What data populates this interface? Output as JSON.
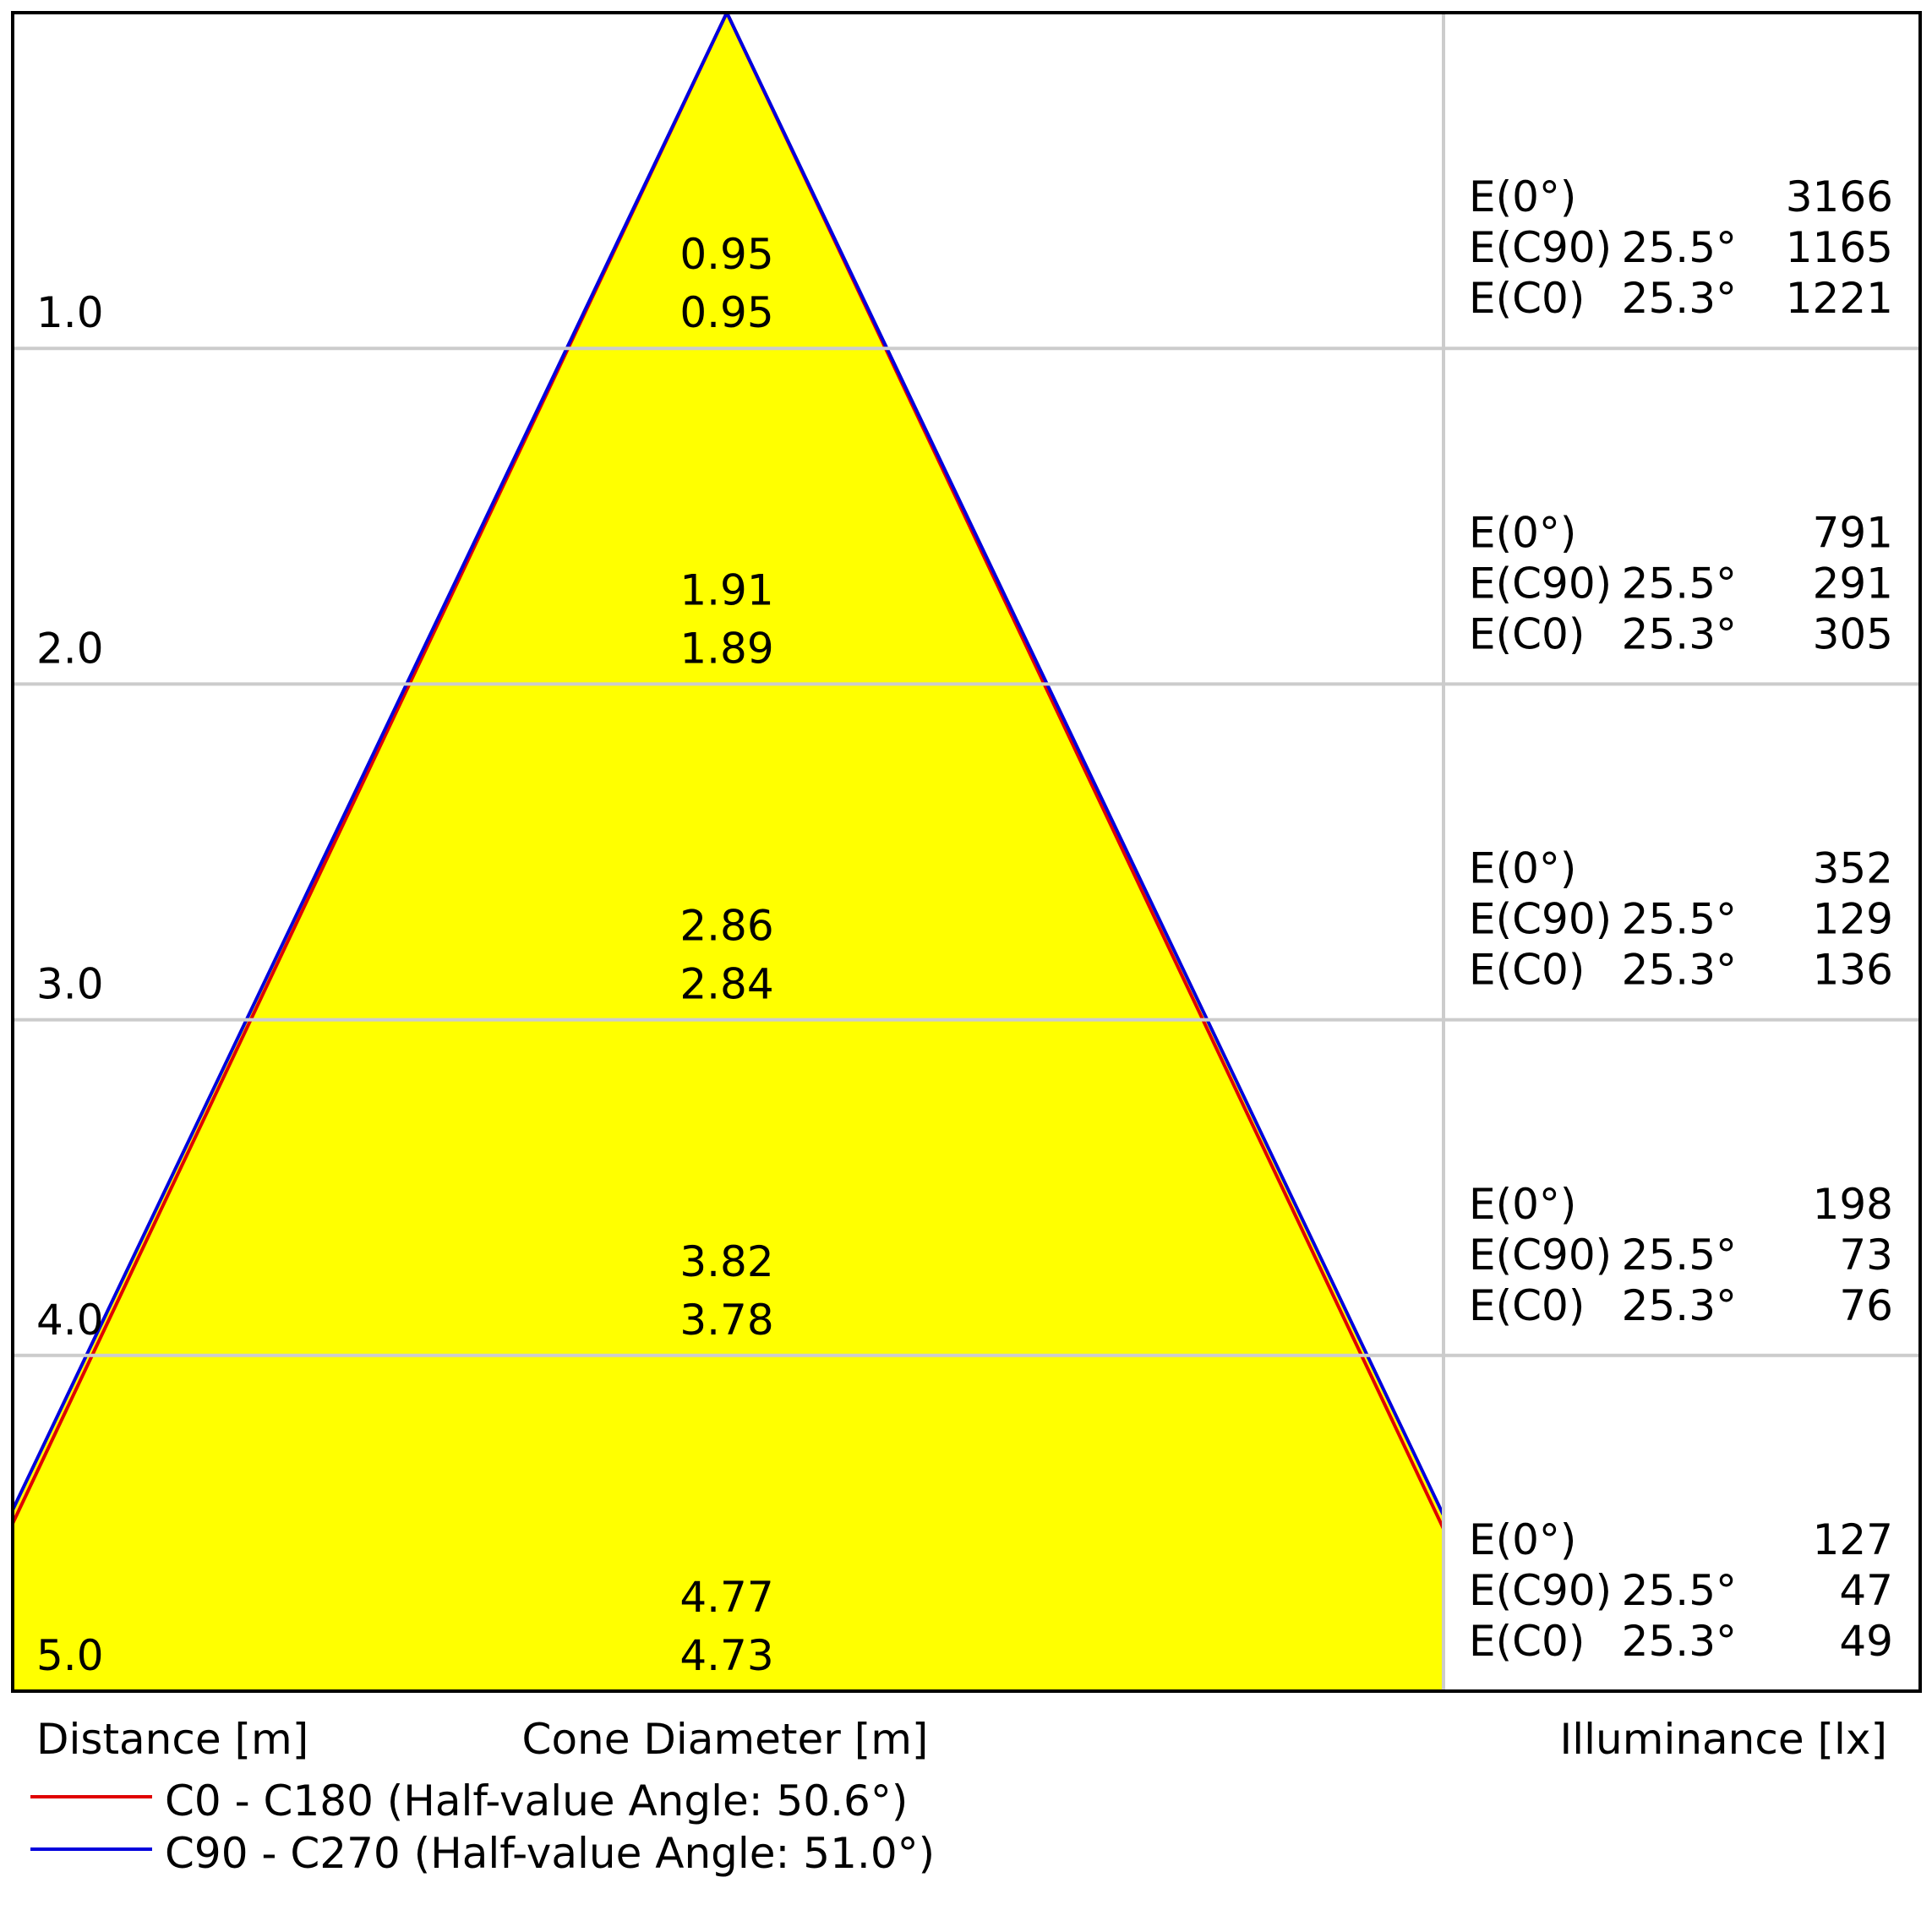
{
  "chart_data": {
    "type": "cone-diagram",
    "xlabel_left": "Distance [m]",
    "xlabel_center": "Cone Diameter [m]",
    "xlabel_right": "Illuminance [lx]",
    "colors": {
      "cone_fill": "#ffff00",
      "c0": "#e00000",
      "c90": "#0000dd",
      "grid": "#cccccc",
      "frame": "#000000"
    },
    "series": [
      {
        "name": "C0 - C180 (Half-value Angle: 50.6°)",
        "color": "#e00000",
        "half_angle_deg": 50.6
      },
      {
        "name": "C90 - C270 (Half-value Angle: 51.0°)",
        "color": "#0000dd",
        "half_angle_deg": 51.0
      }
    ],
    "max_distance": 5.0,
    "rows": [
      {
        "distance": "1.0",
        "d_c90": "0.95",
        "d_c0": "0.95",
        "e0_label": "E(0°)",
        "e0": "3166",
        "ec90_label": "E(C90)",
        "ec90_angle": "25.5°",
        "ec90": "1165",
        "ec0_label": "E(C0)",
        "ec0_angle": "25.3°",
        "ec0": "1221"
      },
      {
        "distance": "2.0",
        "d_c90": "1.91",
        "d_c0": "1.89",
        "e0_label": "E(0°)",
        "e0": "791",
        "ec90_label": "E(C90)",
        "ec90_angle": "25.5°",
        "ec90": "291",
        "ec0_label": "E(C0)",
        "ec0_angle": "25.3°",
        "ec0": "305"
      },
      {
        "distance": "3.0",
        "d_c90": "2.86",
        "d_c0": "2.84",
        "e0_label": "E(0°)",
        "e0": "352",
        "ec90_label": "E(C90)",
        "ec90_angle": "25.5°",
        "ec90": "129",
        "ec0_label": "E(C0)",
        "ec0_angle": "25.3°",
        "ec0": "136"
      },
      {
        "distance": "4.0",
        "d_c90": "3.82",
        "d_c0": "3.78",
        "e0_label": "E(0°)",
        "e0": "198",
        "ec90_label": "E(C90)",
        "ec90_angle": "25.5°",
        "ec90": "73",
        "ec0_label": "E(C0)",
        "ec0_angle": "25.3°",
        "ec0": "76"
      },
      {
        "distance": "5.0",
        "d_c90": "4.77",
        "d_c0": "4.73",
        "e0_label": "E(0°)",
        "e0": "127",
        "ec90_label": "E(C90)",
        "ec90_angle": "25.5°",
        "ec90": "47",
        "ec0_label": "E(C0)",
        "ec0_angle": "25.3°",
        "ec0": "49"
      }
    ]
  }
}
